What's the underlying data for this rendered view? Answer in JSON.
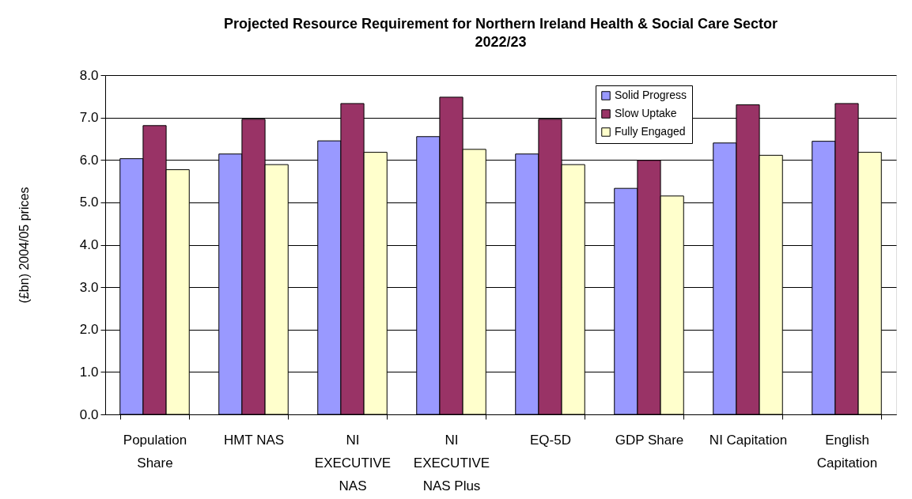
{
  "chart_data": {
    "type": "bar",
    "title": "Projected Resource Requirement for Northern Ireland Health & Social Care Sector\n2022/23",
    "ylabel": "(£bn) 2004/05 prices",
    "categories": [
      "Population Share",
      "HMT NAS",
      "NI EXECUTIVE NAS",
      "NI EXECUTIVE NAS Plus",
      "EQ-5D",
      "GDP Share",
      "NI Capitation",
      "English Capitation"
    ],
    "series": [
      {
        "name": "Solid Progress",
        "color": "#9999ff",
        "values": [
          6.03,
          6.14,
          6.45,
          6.55,
          6.14,
          5.33,
          6.4,
          6.44
        ]
      },
      {
        "name": "Slow Uptake",
        "color": "#993366",
        "values": [
          6.81,
          6.96,
          7.33,
          7.48,
          6.96,
          5.99,
          7.3,
          7.33
        ]
      },
      {
        "name": "Fully Engaged",
        "color": "#ffffcc",
        "values": [
          5.77,
          5.89,
          6.18,
          6.25,
          5.89,
          5.15,
          6.11,
          6.18
        ]
      }
    ],
    "ylim": [
      0,
      8
    ],
    "yticks": [
      {
        "value": 0,
        "label": "0.0"
      },
      {
        "value": 1,
        "label": "1.0"
      },
      {
        "value": 2,
        "label": "2.0"
      },
      {
        "value": 3,
        "label": "3.0"
      },
      {
        "value": 4,
        "label": "4.0"
      },
      {
        "value": 5,
        "label": "5.0"
      },
      {
        "value": 6,
        "label": "6.0"
      },
      {
        "value": 7,
        "label": "7.0"
      },
      {
        "value": 8,
        "label": "8.0"
      }
    ],
    "grid": "y",
    "legend": "top right"
  }
}
